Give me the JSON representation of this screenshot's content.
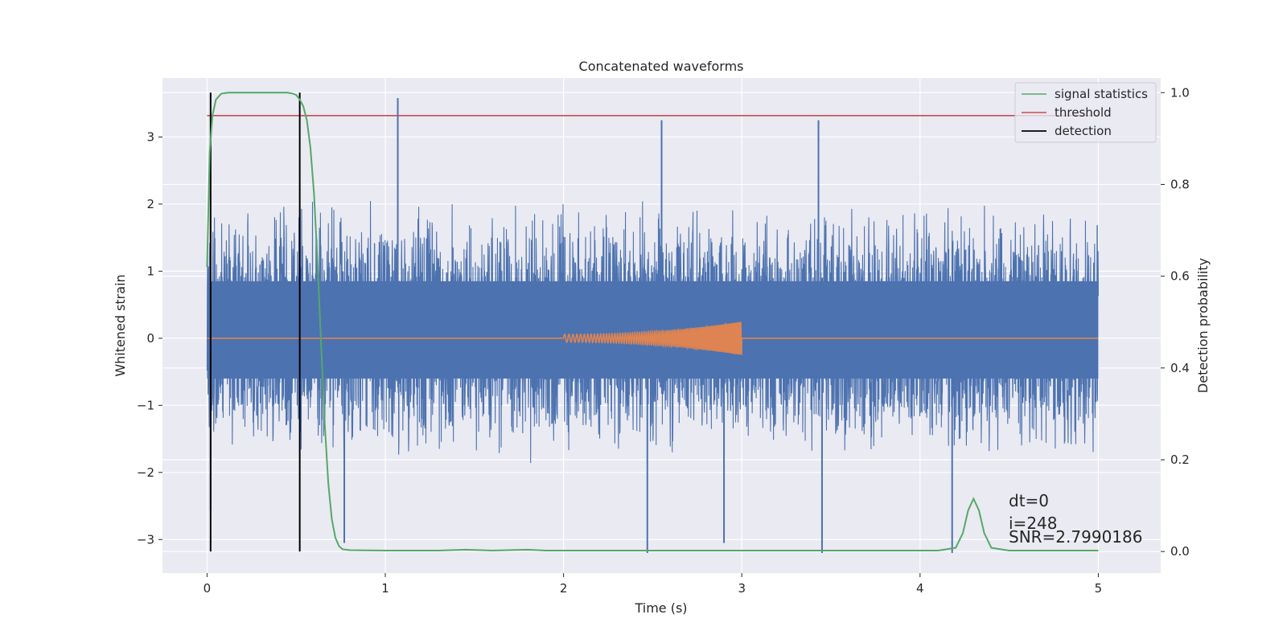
{
  "chart_data": {
    "type": "line",
    "title": "Concatenated waveforms",
    "xlabel": "Time (s)",
    "ylabel": "Whitened strain",
    "ylabel_right": "Detection probability",
    "xlim": [
      -0.25,
      5.35
    ],
    "ylim": [
      -3.5,
      3.88
    ],
    "ylim_right": [
      -0.047,
      1.032
    ],
    "x_ticks": [
      0,
      1,
      2,
      3,
      4,
      5
    ],
    "x_tick_labels": [
      "0",
      "1",
      "2",
      "3",
      "4",
      "5"
    ],
    "y_ticks": [
      3,
      2,
      1,
      0,
      -1,
      -2,
      -3
    ],
    "y_tick_labels": [
      "3",
      "2",
      "1",
      "0",
      "−1",
      "−2",
      "−3"
    ],
    "y2_ticks": [
      1.0,
      0.8,
      0.6,
      0.4,
      0.2,
      0.0
    ],
    "y2_tick_labels": [
      "1.0",
      "0.8",
      "0.6",
      "0.4",
      "0.2",
      "0.0"
    ],
    "grid": true,
    "legend_position": "top-right",
    "colors": {
      "background": "#eaeaf2",
      "grid": "#ffffff",
      "strain": "#4c72b0",
      "injection": "#dd8452",
      "statistic": "#55a868",
      "threshold": "#c44e52",
      "detection": "#000000"
    },
    "strain": {
      "x_start": 0,
      "x_end": 5,
      "typical_range": [
        -1.8,
        2.2
      ],
      "spikes": [
        {
          "x": 1.07,
          "y": 3.58
        },
        {
          "x": 2.55,
          "y": 3.25
        },
        {
          "x": 3.43,
          "y": 3.25
        },
        {
          "x": 2.47,
          "y": -3.2
        },
        {
          "x": 3.45,
          "y": -3.2
        },
        {
          "x": 4.18,
          "y": -3.2
        },
        {
          "x": 0.77,
          "y": -3.05
        },
        {
          "x": 2.9,
          "y": -3.05
        },
        {
          "x": 0.02,
          "y": -2.55
        }
      ]
    },
    "injection": {
      "start": 2.0,
      "end": 3.0,
      "final_amplitude": 0.25
    },
    "series": [
      {
        "name": "signal statistics",
        "axis": "right",
        "x": [
          0.0,
          0.015,
          0.03,
          0.05,
          0.08,
          0.12,
          0.2,
          0.3,
          0.4,
          0.45,
          0.48,
          0.5,
          0.52,
          0.54,
          0.56,
          0.58,
          0.6,
          0.62,
          0.64,
          0.66,
          0.68,
          0.7,
          0.72,
          0.74,
          0.76,
          0.8,
          1.0,
          1.3,
          1.45,
          1.6,
          1.8,
          1.9,
          2.2,
          2.6,
          3.0,
          3.3,
          3.6,
          3.9,
          4.1,
          4.2,
          4.24,
          4.27,
          4.3,
          4.33,
          4.36,
          4.4,
          4.5,
          4.7,
          5.0
        ],
        "values": [
          0.62,
          0.87,
          0.95,
          0.985,
          0.998,
          1.0,
          1.0,
          1.0,
          1.0,
          1.0,
          0.998,
          0.995,
          0.985,
          0.97,
          0.94,
          0.88,
          0.78,
          0.63,
          0.45,
          0.28,
          0.15,
          0.07,
          0.03,
          0.012,
          0.005,
          0.003,
          0.002,
          0.002,
          0.004,
          0.002,
          0.004,
          0.002,
          0.002,
          0.002,
          0.002,
          0.002,
          0.002,
          0.002,
          0.002,
          0.008,
          0.04,
          0.09,
          0.115,
          0.09,
          0.04,
          0.008,
          0.002,
          0.002,
          0.002
        ]
      },
      {
        "name": "threshold",
        "axis": "right",
        "value": 0.95,
        "x_range": [
          0,
          5
        ]
      },
      {
        "name": "detection",
        "axis": "right",
        "x": [
          0.02,
          0.52
        ],
        "y_range": [
          0.0,
          1.0
        ]
      }
    ],
    "annotations": [
      "dt=0",
      "i=248",
      "SNR=2.7990186"
    ]
  }
}
